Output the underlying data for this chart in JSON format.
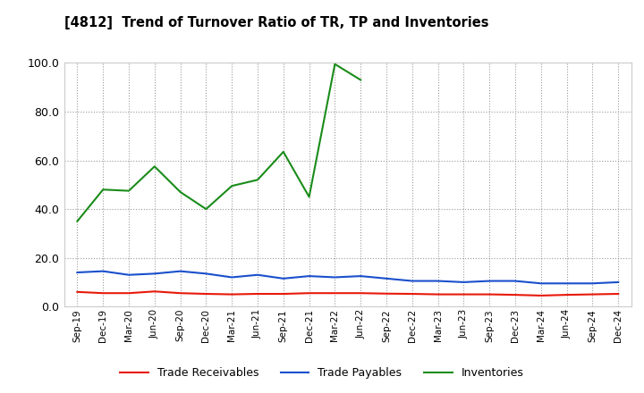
{
  "title": "[4812]  Trend of Turnover Ratio of TR, TP and Inventories",
  "x_labels": [
    "Sep-19",
    "Dec-19",
    "Mar-20",
    "Jun-20",
    "Sep-20",
    "Dec-20",
    "Mar-21",
    "Jun-21",
    "Sep-21",
    "Dec-21",
    "Mar-22",
    "Jun-22",
    "Sep-22",
    "Dec-22",
    "Mar-23",
    "Jun-23",
    "Sep-23",
    "Dec-23",
    "Mar-24",
    "Jun-24",
    "Sep-24",
    "Dec-24"
  ],
  "trade_receivables": [
    6.0,
    5.5,
    5.5,
    6.2,
    5.5,
    5.2,
    5.0,
    5.2,
    5.2,
    5.5,
    5.5,
    5.5,
    5.3,
    5.2,
    5.0,
    5.0,
    5.0,
    4.8,
    4.5,
    4.8,
    5.0,
    5.2
  ],
  "trade_payables": [
    14.0,
    14.5,
    13.0,
    13.5,
    14.5,
    13.5,
    12.0,
    13.0,
    11.5,
    12.5,
    12.0,
    12.5,
    11.5,
    10.5,
    10.5,
    10.0,
    10.5,
    10.5,
    9.5,
    9.5,
    9.5,
    10.0
  ],
  "inventories": [
    35.0,
    48.0,
    47.5,
    57.5,
    47.0,
    40.0,
    49.5,
    52.0,
    63.5,
    45.0,
    99.5,
    93.0,
    null,
    null,
    null,
    null,
    null,
    null,
    null,
    null,
    null,
    null
  ],
  "tr_color": "#e8190a",
  "tp_color": "#1a4fcc",
  "inv_color": "#1a8c1a",
  "ylim": [
    0,
    100
  ],
  "yticks": [
    0.0,
    20.0,
    40.0,
    60.0,
    80.0,
    100.0
  ],
  "legend_labels": [
    "Trade Receivables",
    "Trade Payables",
    "Inventories"
  ],
  "background_color": "#ffffff",
  "grid_color": "#999999"
}
